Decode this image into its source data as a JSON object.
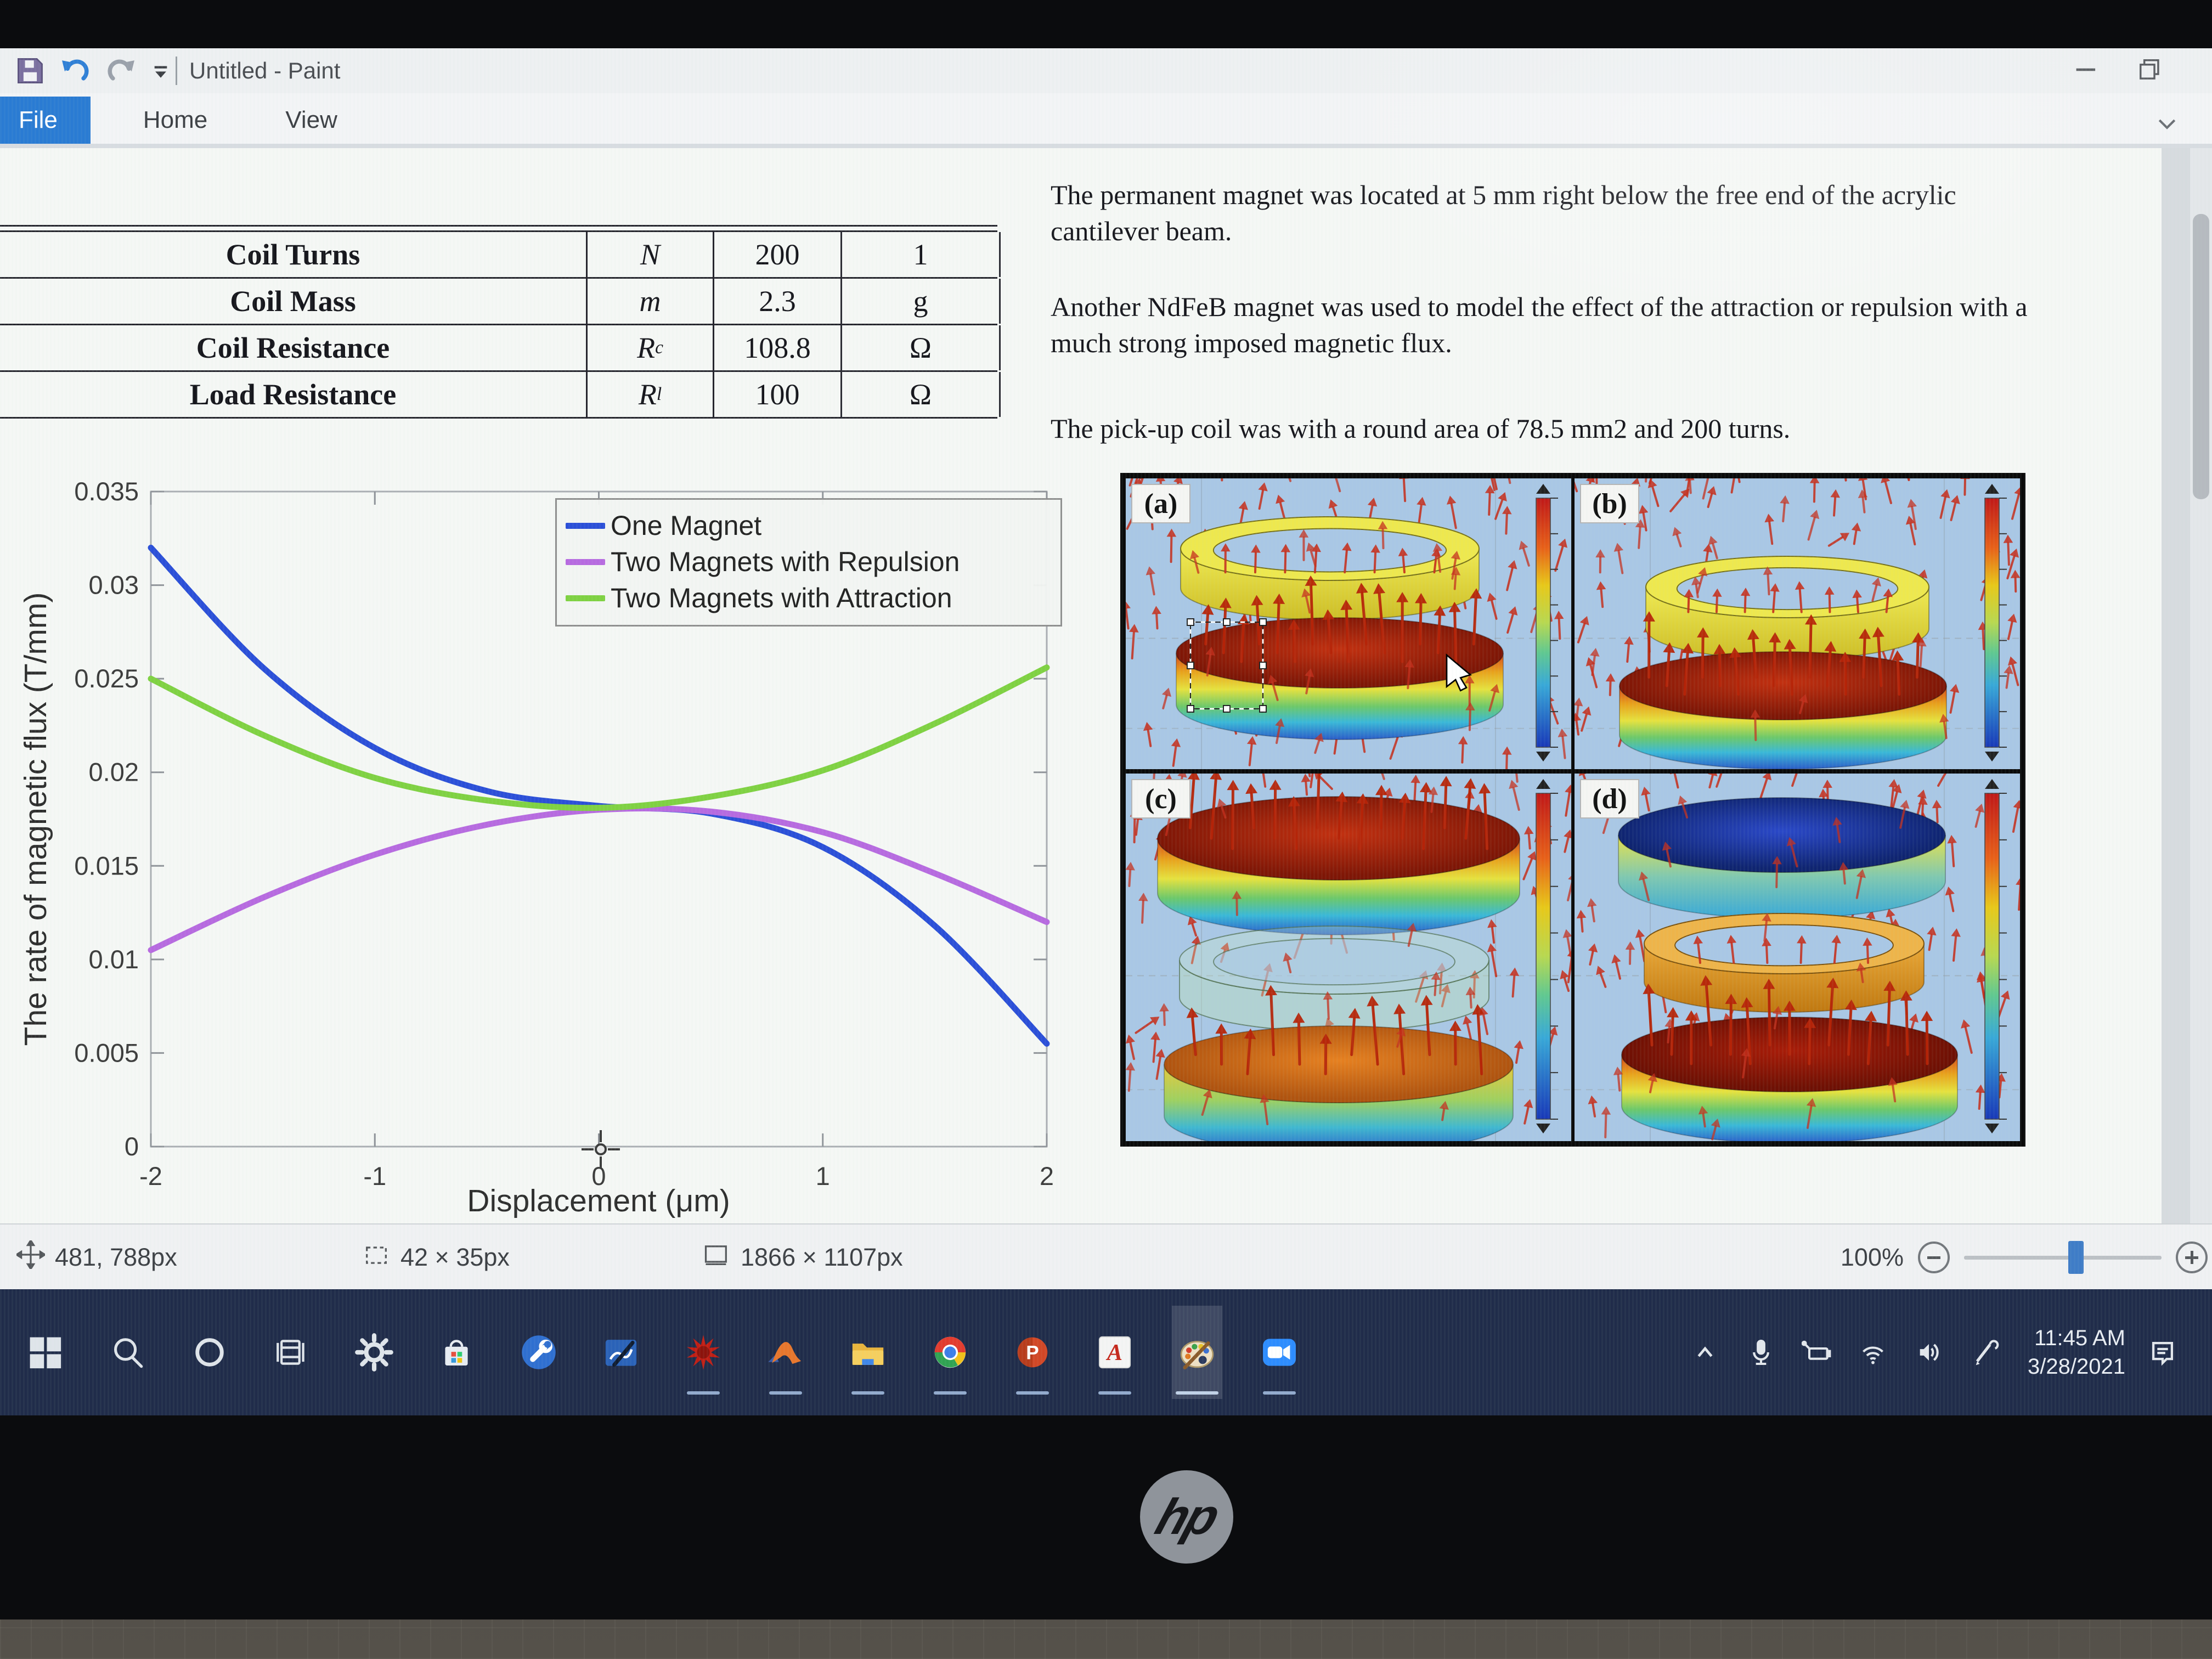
{
  "window": {
    "title": "Untitled - Paint",
    "tabs": {
      "file": "File",
      "home": "Home",
      "view": "View"
    },
    "qat_icons": [
      "save-icon",
      "undo-icon",
      "redo-icon",
      "customize-dropdown-icon"
    ],
    "controls": [
      "minimize-button",
      "restore-button",
      "expand-ribbon-chevron"
    ]
  },
  "document": {
    "table": {
      "rows": [
        {
          "label": "Coil Turns",
          "symbol": "N",
          "subscript": "",
          "value": "200",
          "unit": "1"
        },
        {
          "label": "Coil Mass",
          "symbol": "m",
          "subscript": "",
          "value": "2.3",
          "unit": "g"
        },
        {
          "label": "Coil Resistance",
          "symbol": "R",
          "subscript": "c",
          "value": "108.8",
          "unit": "Ω"
        },
        {
          "label": "Load Resistance",
          "symbol": "R",
          "subscript": "l",
          "value": "100",
          "unit": "Ω"
        }
      ]
    },
    "paragraphs": [
      "The permanent magnet was located at 5 mm right below the free end of the acrylic cantilever beam.",
      "Another NdFeB magnet was used to model the effect of the attraction or repulsion with a much strong imposed magnetic flux.",
      "The pick-up coil was with a round area of 78.5 mm2 and 200 turns."
    ],
    "figure_labels": [
      "(a)",
      "(b)",
      "(c)",
      "(d)"
    ]
  },
  "chart_data": {
    "type": "line",
    "title": "",
    "xlabel": "Displacement (μm)",
    "ylabel": "The rate of magnetic flux (T/mm)",
    "xlim": [
      -2,
      2
    ],
    "ylim": [
      0,
      0.035
    ],
    "xticks": [
      -2,
      -1,
      0,
      1,
      2
    ],
    "yticks": [
      0,
      0.005,
      0.01,
      0.015,
      0.02,
      0.025,
      0.03,
      0.035
    ],
    "grid": false,
    "legend_position": "top-right-inside",
    "x": [
      -2,
      -1.5,
      -1,
      -0.5,
      0,
      0.5,
      1,
      1.5,
      2
    ],
    "series": [
      {
        "name": "One Magnet",
        "color": "#2b4fd8",
        "values": [
          0.032,
          0.0256,
          0.0213,
          0.019,
          0.0182,
          0.0178,
          0.016,
          0.0118,
          0.0055
        ]
      },
      {
        "name": "Two Magnets with Repulsion",
        "color": "#b76ae0",
        "values": [
          0.0105,
          0.0133,
          0.0156,
          0.0172,
          0.018,
          0.0179,
          0.0168,
          0.0146,
          0.012
        ]
      },
      {
        "name": "Two Magnets with Attraction",
        "color": "#7fd142",
        "values": [
          0.025,
          0.022,
          0.0197,
          0.0185,
          0.0181,
          0.0187,
          0.0201,
          0.0226,
          0.0256
        ]
      }
    ]
  },
  "statusbar": {
    "cursor_pos": "481, 788px",
    "selection_size": "42 × 35px",
    "image_size": "1866 × 1107px"
  },
  "zoom_control": {
    "level": "100%"
  },
  "taskbar": {
    "clock_time": "11:45 AM",
    "clock_date": "3/28/2021",
    "apps": [
      "start",
      "search",
      "cortana",
      "task-view",
      "settings",
      "microsoft-store",
      "repair-tool",
      "snip-sketch",
      "mathematica",
      "matlab",
      "file-explorer",
      "chrome",
      "powerpoint",
      "acrobat",
      "paint",
      "zoom"
    ],
    "tray": [
      "tray-expand",
      "microphone",
      "battery-charging",
      "wifi",
      "volume",
      "pen",
      "action-center"
    ]
  },
  "brand": {
    "laptop_logo": "hp"
  }
}
